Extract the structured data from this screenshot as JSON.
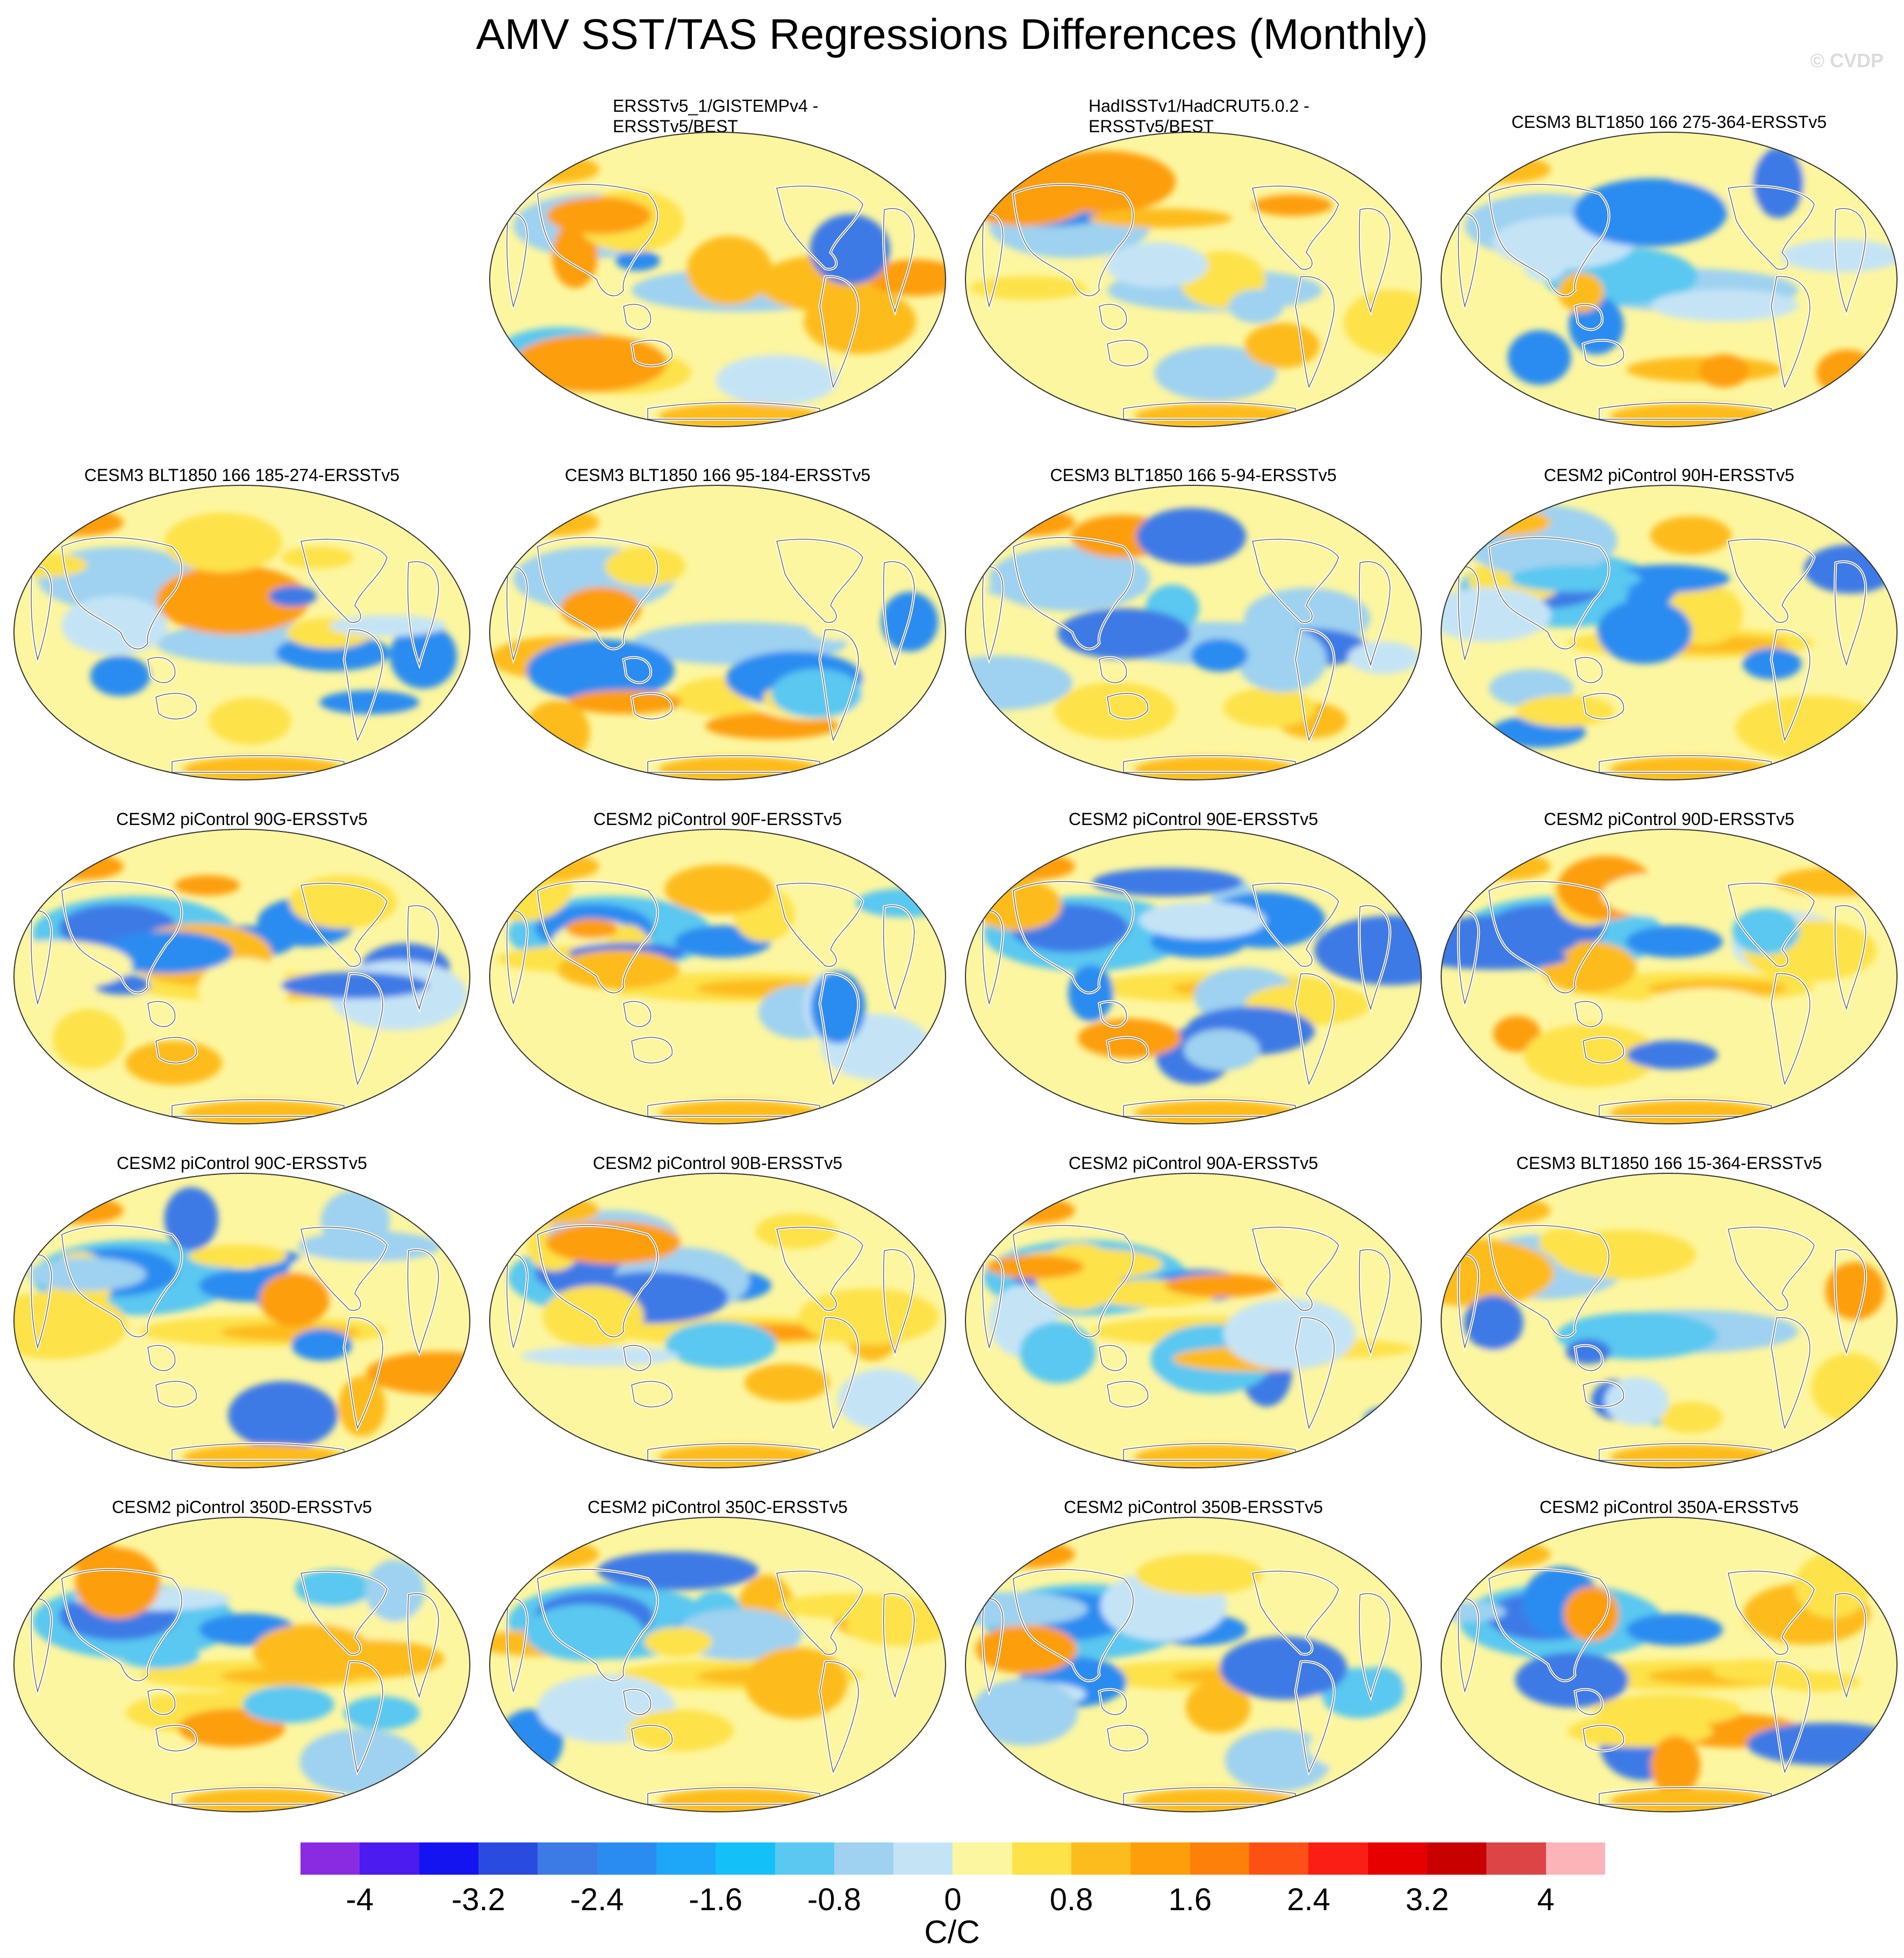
{
  "figure": {
    "title": "AMV SST/TAS Regressions Differences (Monthly)",
    "watermark": "© CVDP",
    "units_label": "C/C"
  },
  "panels": [
    {
      "title": "ERSSTv5_1/GISTEMPv4 -\nERSSTv5/BEST",
      "variant": 1
    },
    {
      "title": "HadISSTv1/HadCRUT5.0.2 -\nERSSTv5/BEST",
      "variant": 2
    },
    {
      "title": "CESM3 BLT1850 166 275-364-ERSSTv5",
      "variant": 3
    },
    {
      "title": "CESM3 BLT1850 166 185-274-ERSSTv5",
      "variant": 4
    },
    {
      "title": "CESM3 BLT1850 166 95-184-ERSSTv5",
      "variant": 5
    },
    {
      "title": "CESM3 BLT1850 166 5-94-ERSSTv5",
      "variant": 6
    },
    {
      "title": "CESM2 piControl 90H-ERSSTv5",
      "variant": 7
    },
    {
      "title": "CESM2 piControl 90G-ERSSTv5",
      "variant": 8
    },
    {
      "title": "CESM2 piControl 90F-ERSSTv5",
      "variant": 9
    },
    {
      "title": "CESM2 piControl 90E-ERSSTv5",
      "variant": 10
    },
    {
      "title": "CESM2 piControl 90D-ERSSTv5",
      "variant": 11
    },
    {
      "title": "CESM2 piControl 90C-ERSSTv5",
      "variant": 12
    },
    {
      "title": "CESM2 piControl 90B-ERSSTv5",
      "variant": 13
    },
    {
      "title": "CESM2 piControl 90A-ERSSTv5",
      "variant": 14
    },
    {
      "title": "CESM3 BLT1850 166 15-364-ERSSTv5",
      "variant": 15
    },
    {
      "title": "CESM2 piControl 350D-ERSSTv5",
      "variant": 16
    },
    {
      "title": "CESM2 piControl 350C-ERSSTv5",
      "variant": 17
    },
    {
      "title": "CESM2 piControl 350B-ERSSTv5",
      "variant": 18
    },
    {
      "title": "CESM2 piControl 350A-ERSSTv5",
      "variant": 19
    }
  ],
  "colorbar": {
    "colors": [
      "#8a2be2",
      "#4b1bf0",
      "#1414f0",
      "#2a4be0",
      "#3c7ae6",
      "#2a8cf0",
      "#1ea6f8",
      "#14c0f8",
      "#5ac8f0",
      "#9ed2f0",
      "#c4e4f6",
      "#fdf6a0",
      "#fde24a",
      "#fdbc1e",
      "#fd9e0a",
      "#fd800a",
      "#fd5014",
      "#fa1e14",
      "#e60000",
      "#c80000",
      "#dc4446",
      "#fcb4b8"
    ],
    "tick_labels": [
      "-4",
      "-3.2",
      "-2.4",
      "-1.6",
      "-0.8",
      "0",
      "0.8",
      "1.6",
      "2.4",
      "3.2",
      "4"
    ],
    "tick_values": [
      -4,
      -3.2,
      -2.4,
      -1.6,
      -0.8,
      0,
      0.8,
      1.6,
      2.4,
      3.2,
      4
    ],
    "range": [
      -4.4,
      4.4
    ]
  }
}
